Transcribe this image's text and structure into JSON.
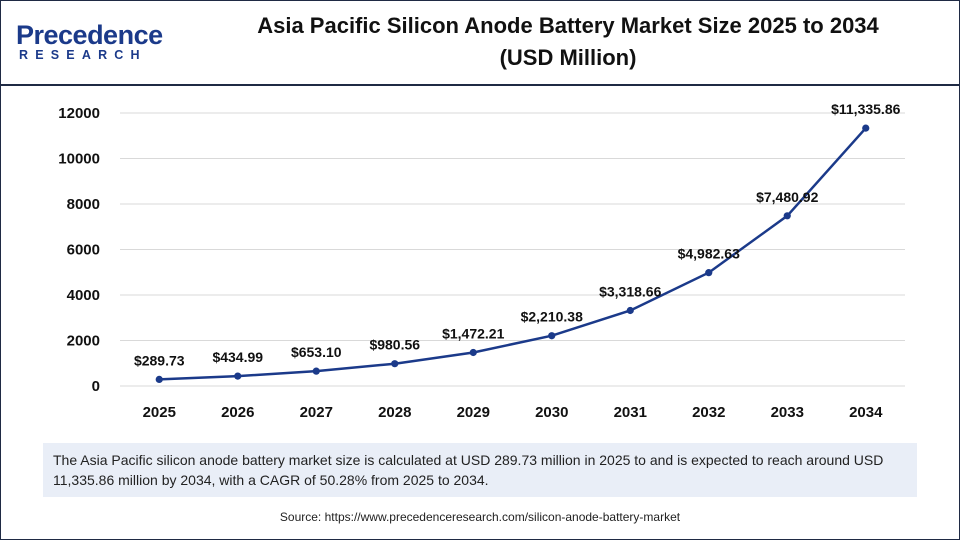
{
  "logo": {
    "main": "Precedence",
    "sub": "RESEARCH"
  },
  "title_line1": "Asia Pacific Silicon Anode Battery Market Size 2025 to 2034",
  "title_line2": "(USD Million)",
  "caption": "The Asia Pacific silicon anode battery market size is calculated at USD 289.73 million in 2025 to and is expected to reach around USD 11,335.86 million by 2034, with a CAGR of 50.28% from 2025 to 2034.",
  "source": "Source: https://www.precedenceresearch.com/silicon-anode-battery-market",
  "colors": {
    "line": "#1b3a8a",
    "grid": "#d9d9d9",
    "text": "#111111"
  },
  "chart_data": {
    "type": "line",
    "title": "Asia Pacific Silicon Anode Battery Market Size 2025 to 2034 (USD Million)",
    "xlabel": "",
    "ylabel": "",
    "categories": [
      "2025",
      "2026",
      "2027",
      "2028",
      "2029",
      "2030",
      "2031",
      "2032",
      "2033",
      "2034"
    ],
    "values": [
      289.73,
      434.99,
      653.1,
      980.56,
      1472.21,
      2210.38,
      3318.66,
      4982.63,
      7480.92,
      11335.86
    ],
    "data_labels": [
      "$289.73",
      "$434.99",
      "$653.10",
      "$980.56",
      "$1,472.21",
      "$2,210.38",
      "$3,318.66",
      "$4,982.63",
      "$7,480.92",
      "$11,335.86"
    ],
    "ylim": [
      0,
      12000
    ],
    "yticks": [
      "0",
      "2000",
      "4000",
      "6000",
      "8000",
      "10000",
      "12000"
    ],
    "grid": true,
    "legend": "none"
  }
}
